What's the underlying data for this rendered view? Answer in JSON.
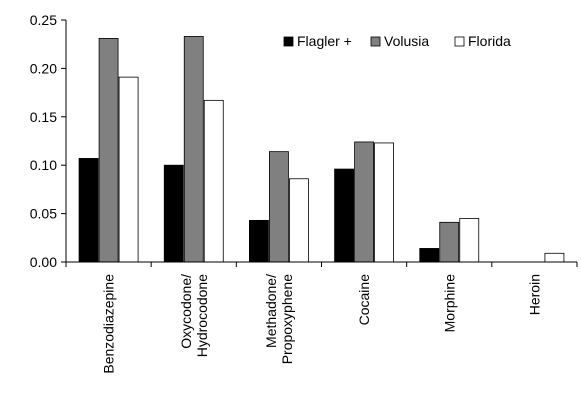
{
  "chart_data": {
    "type": "bar",
    "title": "",
    "xlabel": "",
    "ylabel": "",
    "categories": [
      "Benzodiazepine",
      "Oxycodone/\nHydrocodone",
      "Methadone/\nPropoxyphene",
      "Cocaine",
      "Morphine",
      "Heroin"
    ],
    "series": [
      {
        "name": "Flagler +",
        "values": [
          0.107,
          0.1,
          0.043,
          0.096,
          0.014,
          0.0
        ],
        "color": "#000000"
      },
      {
        "name": "Volusia",
        "values": [
          0.231,
          0.233,
          0.114,
          0.124,
          0.041,
          0.0
        ],
        "color": "#808080"
      },
      {
        "name": "Florida",
        "values": [
          0.191,
          0.167,
          0.086,
          0.123,
          0.045,
          0.009
        ],
        "color": "#ffffff"
      }
    ],
    "ylim": [
      0,
      0.25
    ],
    "yticks": [
      "0.00",
      "0.05",
      "0.10",
      "0.15",
      "0.20",
      "0.25"
    ],
    "grid": false,
    "legend_position": "top-right"
  }
}
